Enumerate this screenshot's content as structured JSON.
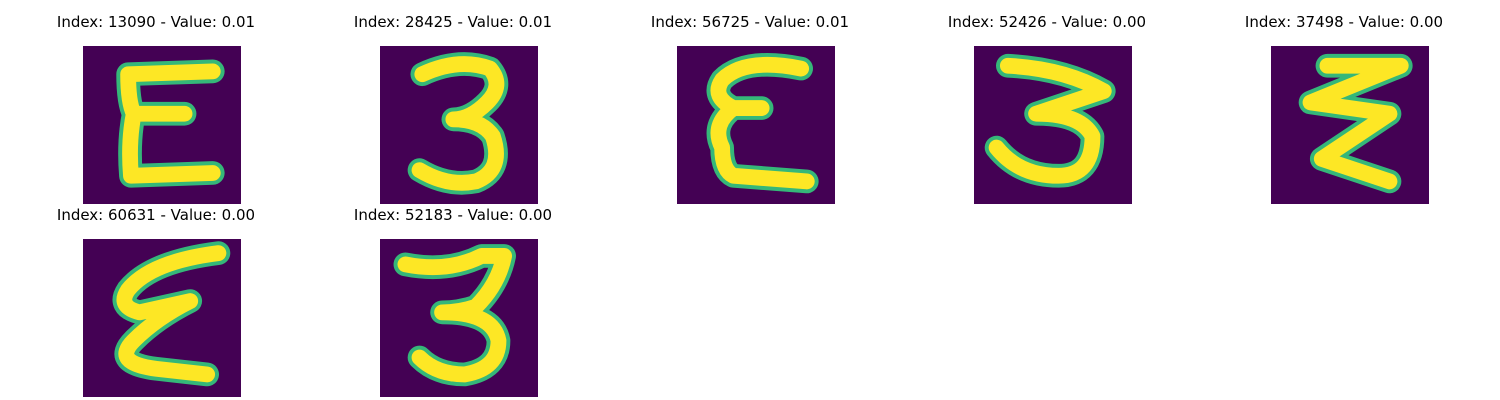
{
  "panels": [
    {
      "title": "Index: 13090 - Value: 0.01",
      "glyph": "E",
      "background": "#440154",
      "stroke": "#fde725",
      "edge": "#35b779"
    },
    {
      "title": "Index: 28425 - Value: 0.01",
      "glyph": "3",
      "background": "#440154",
      "stroke": "#fde725",
      "edge": "#35b779"
    },
    {
      "title": "Index: 56725 - Value: 0.01",
      "glyph": "E",
      "background": "#440154",
      "stroke": "#fde725",
      "edge": "#35b779"
    },
    {
      "title": "Index: 52426 - Value: 0.00",
      "glyph": "3",
      "background": "#440154",
      "stroke": "#fde725",
      "edge": "#35b779"
    },
    {
      "title": "Index: 37498 - Value: 0.00",
      "glyph": "Z",
      "background": "#440154",
      "stroke": "#fde725",
      "edge": "#35b779"
    },
    {
      "title": "Index: 60631 - Value: 0.00",
      "glyph": "E",
      "background": "#440154",
      "stroke": "#fde725",
      "edge": "#35b779"
    },
    {
      "title": "Index: 52183 - Value: 0.00",
      "glyph": "3",
      "background": "#440154",
      "stroke": "#fde725",
      "edge": "#35b779"
    }
  ]
}
